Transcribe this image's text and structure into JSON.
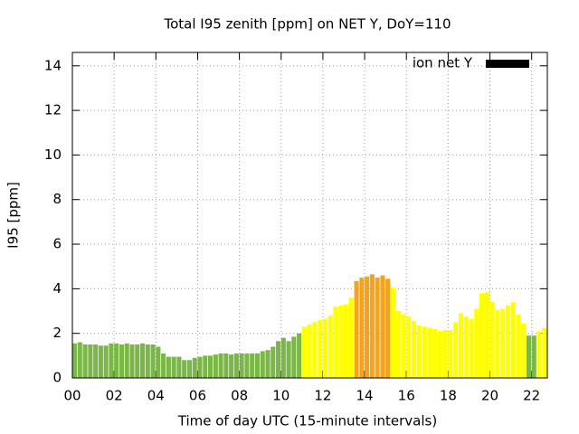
{
  "chart_data": {
    "type": "bar",
    "title": "Total I95 zenith [ppm] on NET Y, DoY=110",
    "xlabel": "Time of day UTC (15-minute intervals)",
    "ylabel": "I95 [ppm]",
    "legend": {
      "label": "ion net Y",
      "color": "#000000",
      "position": "upper right"
    },
    "grid": true,
    "xlim": [
      0,
      22.75
    ],
    "ylim": [
      0,
      14.6
    ],
    "xticks": [
      {
        "value": 0,
        "label": "00"
      },
      {
        "value": 2,
        "label": "02"
      },
      {
        "value": 4,
        "label": "04"
      },
      {
        "value": 6,
        "label": "06"
      },
      {
        "value": 8,
        "label": "08"
      },
      {
        "value": 10,
        "label": "10"
      },
      {
        "value": 12,
        "label": "12"
      },
      {
        "value": 14,
        "label": "14"
      },
      {
        "value": 16,
        "label": "16"
      },
      {
        "value": 18,
        "label": "18"
      },
      {
        "value": 20,
        "label": "20"
      },
      {
        "value": 22,
        "label": "22"
      }
    ],
    "yticks": [
      0,
      2,
      4,
      6,
      8,
      10,
      12,
      14
    ],
    "x": [
      0,
      0.25,
      0.5,
      0.75,
      1,
      1.25,
      1.5,
      1.75,
      2,
      2.25,
      2.5,
      2.75,
      3,
      3.25,
      3.5,
      3.75,
      4,
      4.25,
      4.5,
      4.75,
      5,
      5.25,
      5.5,
      5.75,
      6,
      6.25,
      6.5,
      6.75,
      7,
      7.25,
      7.5,
      7.75,
      8,
      8.25,
      8.5,
      8.75,
      9,
      9.25,
      9.5,
      9.75,
      10,
      10.25,
      10.5,
      10.75,
      11,
      11.25,
      11.5,
      11.75,
      12,
      12.25,
      12.5,
      12.75,
      13,
      13.25,
      13.5,
      13.75,
      14,
      14.25,
      14.5,
      14.75,
      15,
      15.25,
      15.5,
      15.75,
      16,
      16.25,
      16.5,
      16.75,
      17,
      17.25,
      17.5,
      17.75,
      18,
      18.25,
      18.5,
      18.75,
      19,
      19.25,
      19.5,
      19.75,
      20,
      20.25,
      20.5,
      20.75,
      21,
      21.25,
      21.5,
      21.75,
      22,
      22.25,
      22.5
    ],
    "values": [
      1.55,
      1.6,
      1.5,
      1.5,
      1.5,
      1.45,
      1.45,
      1.55,
      1.55,
      1.5,
      1.55,
      1.5,
      1.5,
      1.55,
      1.5,
      1.5,
      1.4,
      1.1,
      0.95,
      0.95,
      0.95,
      0.8,
      0.8,
      0.9,
      0.95,
      1.0,
      1.0,
      1.05,
      1.1,
      1.1,
      1.05,
      1.1,
      1.1,
      1.1,
      1.1,
      1.1,
      1.2,
      1.25,
      1.4,
      1.65,
      1.8,
      1.65,
      1.85,
      2.0,
      2.3,
      2.4,
      2.5,
      2.6,
      2.65,
      2.8,
      3.2,
      3.25,
      3.3,
      3.6,
      4.35,
      4.5,
      4.55,
      4.65,
      4.5,
      4.6,
      4.45,
      4.05,
      3.0,
      2.85,
      2.75,
      2.55,
      2.35,
      2.3,
      2.25,
      2.2,
      2.1,
      2.15,
      2.15,
      2.5,
      2.9,
      2.75,
      2.65,
      3.1,
      3.8,
      3.85,
      3.4,
      3.05,
      3.1,
      3.25,
      3.4,
      2.85,
      2.45,
      1.9,
      1.9,
      2.1,
      2.25
    ],
    "colors": [
      "#7ab648",
      "#7ab648",
      "#7ab648",
      "#7ab648",
      "#7ab648",
      "#7ab648",
      "#7ab648",
      "#7ab648",
      "#7ab648",
      "#7ab648",
      "#7ab648",
      "#7ab648",
      "#7ab648",
      "#7ab648",
      "#7ab648",
      "#7ab648",
      "#7ab648",
      "#7ab648",
      "#7ab648",
      "#7ab648",
      "#7ab648",
      "#7ab648",
      "#7ab648",
      "#7ab648",
      "#7ab648",
      "#7ab648",
      "#7ab648",
      "#7ab648",
      "#7ab648",
      "#7ab648",
      "#7ab648",
      "#7ab648",
      "#7ab648",
      "#7ab648",
      "#7ab648",
      "#7ab648",
      "#7ab648",
      "#7ab648",
      "#7ab648",
      "#7ab648",
      "#7ab648",
      "#7ab648",
      "#7ab648",
      "#7ab648",
      "#ffff00",
      "#ffff00",
      "#ffff00",
      "#ffff00",
      "#ffff00",
      "#ffff00",
      "#ffff00",
      "#ffff00",
      "#ffff00",
      "#ffff00",
      "#f5a31a",
      "#f5a31a",
      "#f5a31a",
      "#f5a31a",
      "#f5a31a",
      "#f5a31a",
      "#f5a31a",
      "#ffff00",
      "#ffff00",
      "#ffff00",
      "#ffff00",
      "#ffff00",
      "#ffff00",
      "#ffff00",
      "#ffff00",
      "#ffff00",
      "#ffff00",
      "#ffff00",
      "#ffff00",
      "#ffff00",
      "#ffff00",
      "#ffff00",
      "#ffff00",
      "#ffff00",
      "#ffff00",
      "#ffff00",
      "#ffff00",
      "#ffff00",
      "#ffff00",
      "#ffff00",
      "#ffff00",
      "#ffff00",
      "#ffff00",
      "#7ab648",
      "#7ab648",
      "#ffff00",
      "#ffff00"
    ]
  }
}
